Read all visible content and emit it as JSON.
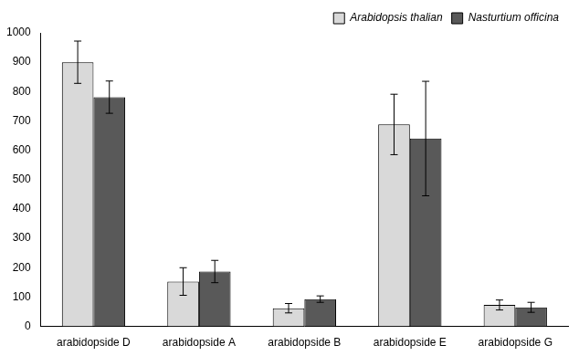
{
  "chart_data": {
    "type": "bar",
    "categories": [
      "arabidopside D",
      "arabidopside A",
      "arabidopside B",
      "arabidopside E",
      "arabidopside G"
    ],
    "series": [
      {
        "name": "Arabidopsis thalian",
        "color": "#d9d9d9",
        "values": [
          900,
          153,
          62,
          688,
          73
        ],
        "errors": [
          72,
          47,
          16,
          103,
          17
        ]
      },
      {
        "name": "Nasturtium officina",
        "color": "#595959",
        "values": [
          781,
          187,
          93,
          640,
          65
        ],
        "errors": [
          55,
          38,
          11,
          195,
          17
        ]
      }
    ],
    "ylim": [
      0,
      1000
    ],
    "yticks": [
      0,
      100,
      200,
      300,
      400,
      500,
      600,
      700,
      800,
      900,
      1000
    ],
    "grid": false,
    "legend": "upper right"
  }
}
